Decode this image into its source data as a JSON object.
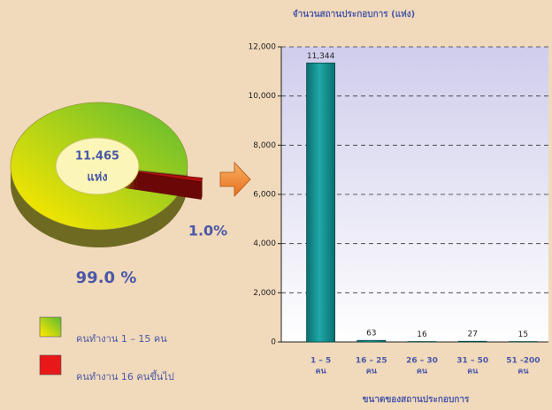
{
  "chart_data": [
    {
      "type": "pie",
      "labels": [
        "คนทำงาน 1 – 15 คน",
        "คนทำงาน 16 คนขึ้นไป"
      ],
      "values": [
        99.0,
        1.0
      ],
      "value_labels": [
        "99.0 %",
        "1.0%"
      ],
      "colors": [
        "#6cbf2e",
        "#b01010"
      ],
      "center_label": [
        "11.465",
        "แห่ง"
      ]
    },
    {
      "type": "bar",
      "title": "จำนวนสถานประกอบการ (แห่ง)",
      "x_label": "ขนาดของสถานประกอบการ",
      "categories": [
        [
          "1 – 5",
          "คน"
        ],
        [
          "16 – 25",
          "คน"
        ],
        [
          "26 – 30",
          "คน"
        ],
        [
          "31 – 50",
          "คน"
        ],
        [
          "51 -200",
          "คน"
        ]
      ],
      "values": [
        11344,
        63,
        16,
        27,
        15
      ],
      "value_labels": [
        "11,344",
        "63",
        "16",
        "27",
        "15"
      ],
      "color": "#20a8a8",
      "ylim": [
        0,
        12000
      ],
      "yticks": [
        0,
        {
          "value": 2000,
          "label": "2,000"
        },
        {
          "value": 4000,
          "label": "4,000"
        },
        {
          "value": 6000,
          "label": "6,000"
        },
        {
          "value": 8000,
          "label": "8,000"
        },
        {
          "value": 10000,
          "label": "10,000"
        },
        {
          "value": 12000,
          "label": "12,000"
        }
      ],
      "grid": true
    }
  ]
}
